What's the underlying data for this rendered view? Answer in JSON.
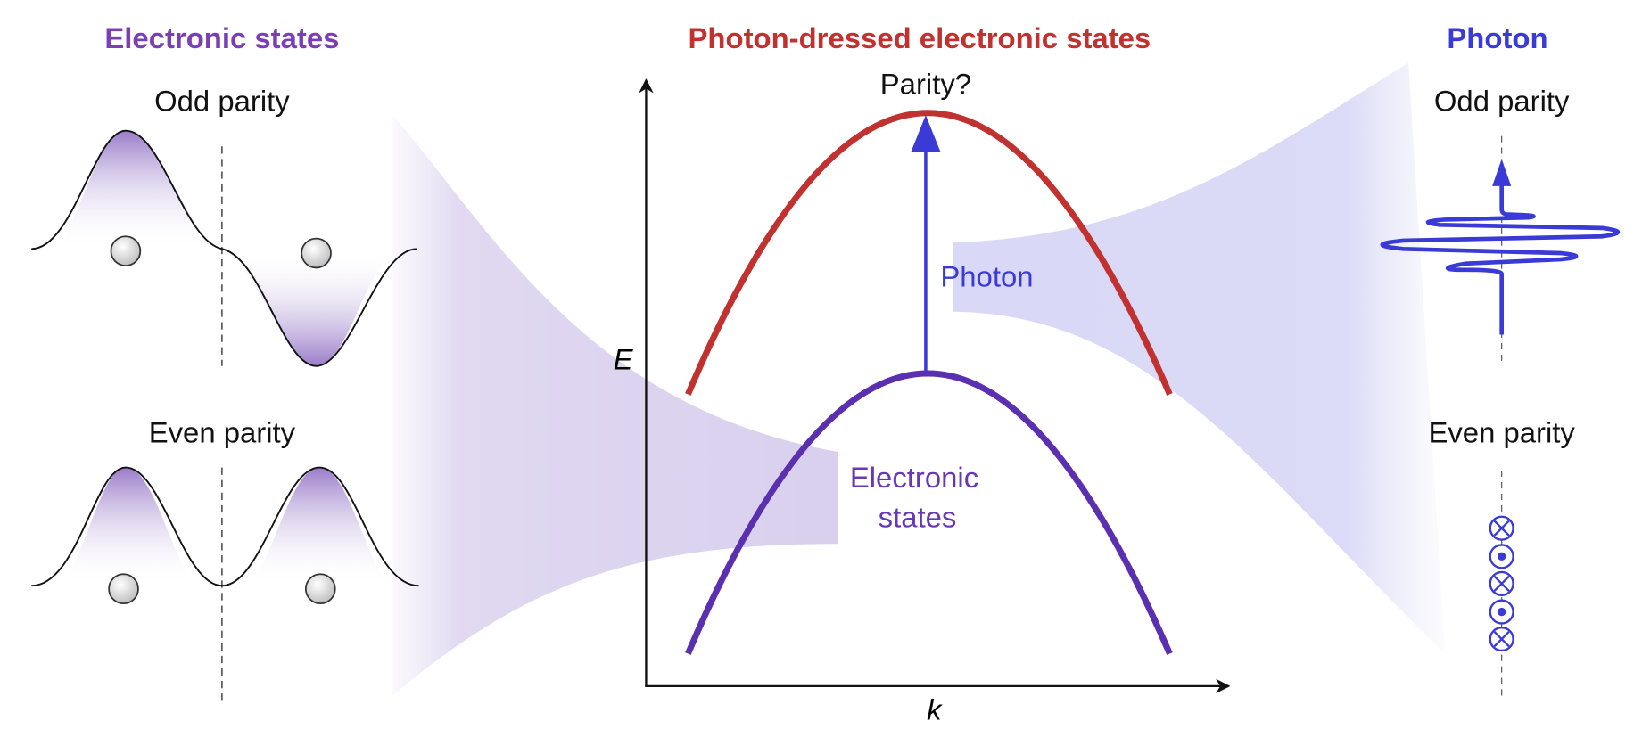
{
  "left": {
    "title": "Electronic states",
    "odd": "Odd parity",
    "even": "Even parity"
  },
  "center": {
    "title": "Photon-dressed electronic states",
    "top_label": "Parity?",
    "photon": "Photon",
    "electronic": [
      "Electronic",
      "states"
    ],
    "y_axis": "E",
    "x_axis": "k"
  },
  "right": {
    "title": "Photon",
    "odd": "Odd parity",
    "even": "Even parity"
  }
}
